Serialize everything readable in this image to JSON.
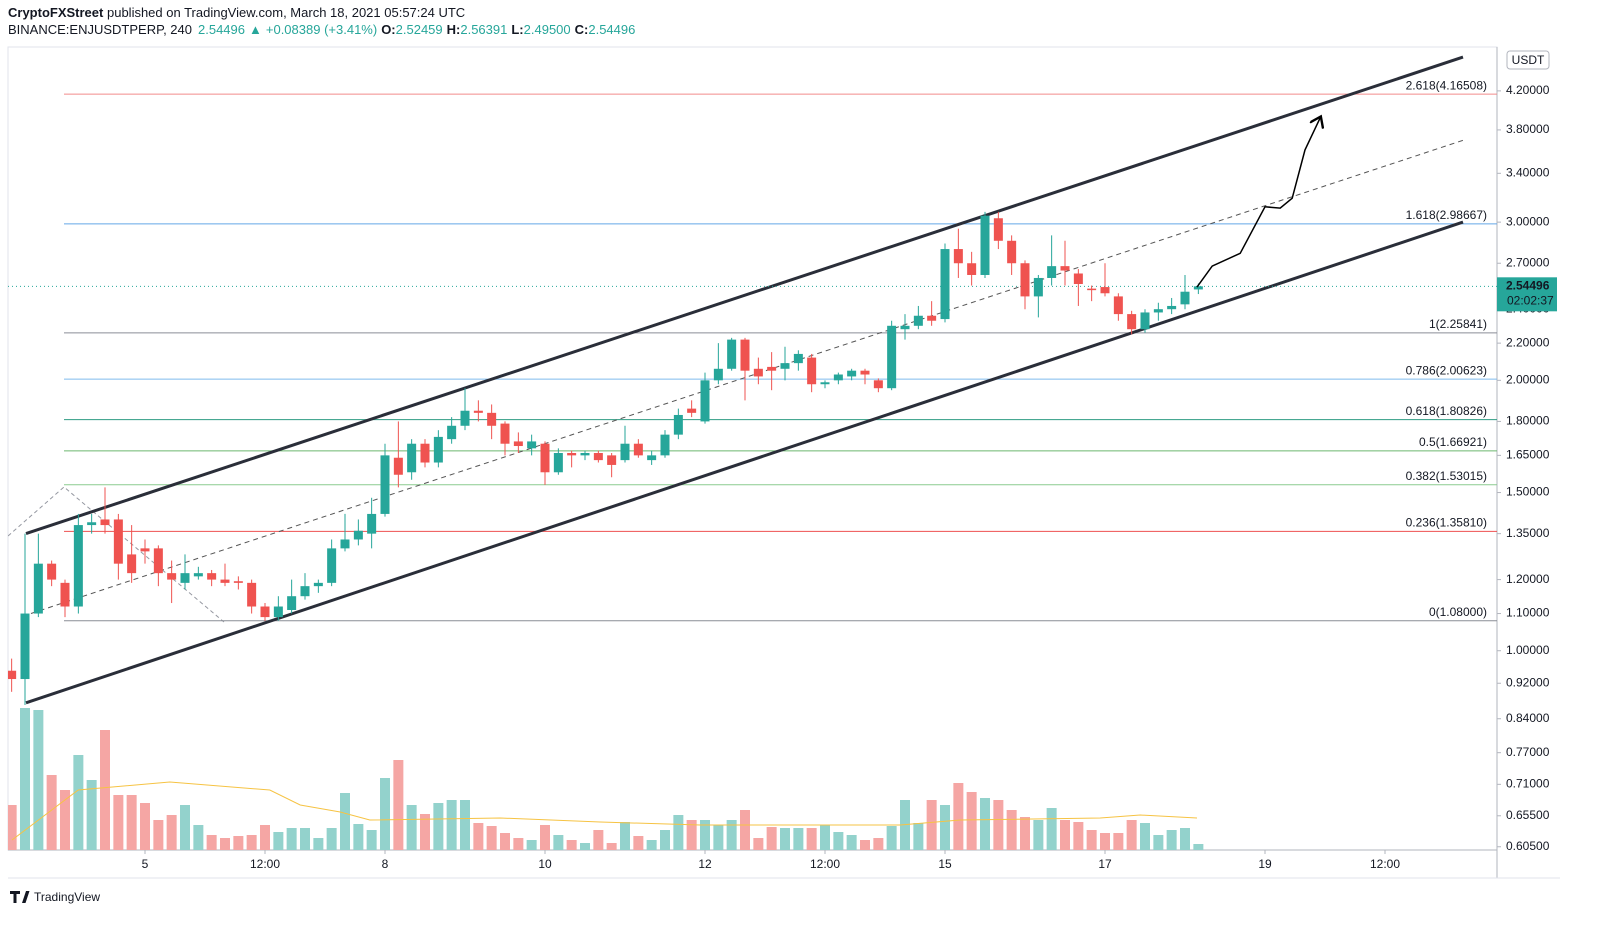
{
  "chart_data": {
    "type": "candlestick",
    "header": {
      "author": "CryptoFXStreet",
      "published": "published on TradingView.com, March 18, 2021 05:57:24 UTC",
      "symbol": "BINANCE:ENJUSDTPERP, 240",
      "last": "2.54496",
      "change": "+0.08389 (+3.41%)",
      "ohlc": [
        {
          "key": "O:",
          "value": "2.52459"
        },
        {
          "key": "H:",
          "value": "2.56391"
        },
        {
          "key": "L:",
          "value": "2.49500"
        },
        {
          "key": "C:",
          "value": "2.54496"
        }
      ]
    },
    "currency": "USDT",
    "countdown": "02:02:37",
    "footer": "TradingView",
    "up_color": "#26a69a",
    "down_color": "#ef5350",
    "volume_up_color": "#93d2cc",
    "volume_down_color": "#f5a6a4",
    "volume_ma_color": "#f6c343",
    "log_scale": true,
    "grid": false,
    "xlim": [
      3.2875,
      21.9
    ],
    "xticks": [
      5,
      {
        "value": 6.5,
        "label": "12:00"
      },
      8,
      10,
      12,
      {
        "value": 13.5,
        "label": "12:00"
      },
      15,
      17,
      19,
      {
        "value": 20.5,
        "label": "12:00"
      }
    ],
    "ylim": [
      0.6,
      4.7
    ],
    "yticks": [
      {
        "value": 4.2,
        "label": "4.20000"
      },
      {
        "value": 3.8,
        "label": "3.80000"
      },
      {
        "value": 3.4,
        "label": "3.40000"
      },
      {
        "value": 3.0,
        "label": "3.00000"
      },
      {
        "value": 2.7,
        "label": "2.70000"
      },
      {
        "value": 2.4,
        "label": "2.40000"
      },
      {
        "value": 2.2,
        "label": "2.20000"
      },
      {
        "value": 2.0,
        "label": "2.00000"
      },
      {
        "value": 1.8,
        "label": "1.80000"
      },
      {
        "value": 1.65,
        "label": "1.65000"
      },
      {
        "value": 1.5,
        "label": "1.50000"
      },
      {
        "value": 1.35,
        "label": "1.35000"
      },
      {
        "value": 1.2,
        "label": "1.20000"
      },
      {
        "value": 1.1,
        "label": "1.10000"
      },
      {
        "value": 1.0,
        "label": "1.00000"
      },
      {
        "value": 0.92,
        "label": "0.92000"
      },
      {
        "value": 0.84,
        "label": "0.84000"
      },
      {
        "value": 0.77,
        "label": "0.77000"
      },
      {
        "value": 0.71,
        "label": "0.71000"
      },
      {
        "value": 0.655,
        "label": "0.65500"
      },
      {
        "value": 0.605,
        "label": "0.60500"
      }
    ],
    "volume_ylim": [
      0,
      150
    ],
    "x": [
      3.333,
      3.5,
      3.667,
      3.833,
      4,
      4.167,
      4.333,
      4.5,
      4.667,
      4.833,
      5,
      5.167,
      5.333,
      5.5,
      5.667,
      5.833,
      6,
      6.167,
      6.333,
      6.5,
      6.667,
      6.833,
      7,
      7.167,
      7.333,
      7.5,
      7.667,
      7.833,
      8,
      8.167,
      8.333,
      8.5,
      8.667,
      8.833,
      9,
      9.167,
      9.333,
      9.5,
      9.667,
      9.833,
      10,
      10.167,
      10.333,
      10.5,
      10.667,
      10.833,
      11,
      11.167,
      11.333,
      11.5,
      11.667,
      11.833,
      12,
      12.167,
      12.333,
      12.5,
      12.667,
      12.833,
      13,
      13.167,
      13.333,
      13.5,
      13.667,
      13.833,
      14,
      14.167,
      14.333,
      14.5,
      14.667,
      14.833,
      15,
      15.167,
      15.333,
      15.5,
      15.667,
      15.833,
      16,
      16.167,
      16.333,
      16.5,
      16.667,
      16.833,
      17,
      17.167,
      17.333,
      17.5,
      17.667,
      17.833,
      18,
      18.167
    ],
    "open": [
      0.95,
      0.93,
      1.1,
      1.25,
      1.19,
      1.12,
      1.38,
      1.4,
      1.4,
      1.28,
      1.3,
      1.3,
      1.22,
      1.19,
      1.21,
      1.22,
      1.2,
      1.195,
      1.19,
      1.12,
      1.09,
      1.11,
      1.15,
      1.18,
      1.19,
      1.3,
      1.33,
      1.35,
      1.42,
      1.64,
      1.58,
      1.7,
      1.62,
      1.72,
      1.78,
      1.85,
      1.84,
      1.79,
      1.71,
      1.68,
      1.7,
      1.58,
      1.66,
      1.65,
      1.66,
      1.65,
      1.63,
      1.7,
      1.63,
      1.65,
      1.74,
      1.86,
      1.8,
      2.0,
      2.06,
      2.22,
      2.06,
      2.07,
      2.06,
      2.09,
      2.12,
      1.98,
      2.0,
      2.02,
      2.05,
      2.0,
      1.96,
      2.28,
      2.3,
      2.36,
      2.34,
      2.8,
      2.7,
      2.62,
      3.03,
      2.86,
      2.7,
      2.48,
      2.6,
      2.68,
      2.63,
      2.53,
      2.54,
      2.48,
      2.37,
      2.28,
      2.38,
      2.4,
      2.43,
      2.52459
    ],
    "high": [
      0.98,
      1.35,
      1.35,
      1.26,
      1.2,
      1.42,
      1.42,
      1.52,
      1.42,
      1.38,
      1.33,
      1.31,
      1.26,
      1.28,
      1.24,
      1.23,
      1.25,
      1.21,
      1.2,
      1.13,
      1.15,
      1.2,
      1.22,
      1.2,
      1.33,
      1.42,
      1.4,
      1.48,
      1.7,
      1.8,
      1.72,
      1.72,
      1.76,
      1.82,
      1.96,
      1.9,
      1.88,
      1.8,
      1.75,
      1.74,
      1.71,
      1.68,
      1.67,
      1.67,
      1.67,
      1.66,
      1.78,
      1.72,
      1.67,
      1.76,
      1.86,
      1.9,
      2.04,
      2.2,
      2.23,
      2.23,
      2.12,
      2.15,
      2.18,
      2.16,
      2.14,
      2.0,
      2.04,
      2.06,
      2.06,
      2.01,
      2.33,
      2.37,
      2.42,
      2.45,
      2.84,
      2.95,
      2.78,
      3.08,
      3.08,
      2.9,
      2.72,
      2.62,
      2.9,
      2.86,
      2.66,
      2.55,
      2.7,
      2.5,
      2.39,
      2.4,
      2.44,
      2.47,
      2.62,
      2.56391
    ],
    "low": [
      0.9,
      0.87,
      1.09,
      1.18,
      1.09,
      1.1,
      1.35,
      1.35,
      1.2,
      1.19,
      1.25,
      1.18,
      1.13,
      1.17,
      1.2,
      1.18,
      1.18,
      1.17,
      1.1,
      1.08,
      1.08,
      1.1,
      1.14,
      1.16,
      1.18,
      1.29,
      1.31,
      1.3,
      1.41,
      1.52,
      1.55,
      1.6,
      1.6,
      1.7,
      1.76,
      1.8,
      1.72,
      1.65,
      1.66,
      1.65,
      1.53,
      1.57,
      1.6,
      1.63,
      1.62,
      1.56,
      1.62,
      1.64,
      1.61,
      1.64,
      1.72,
      1.82,
      1.79,
      1.98,
      2.05,
      1.9,
      1.98,
      1.95,
      2.0,
      2.05,
      1.94,
      1.96,
      1.98,
      2.0,
      1.98,
      1.94,
      1.95,
      2.22,
      2.28,
      2.3,
      2.32,
      2.6,
      2.55,
      2.6,
      2.8,
      2.62,
      2.4,
      2.35,
      2.55,
      2.55,
      2.42,
      2.45,
      2.48,
      2.33,
      2.25,
      2.26,
      2.33,
      2.37,
      2.4,
      2.495
    ],
    "close": [
      0.93,
      1.1,
      1.25,
      1.2,
      1.12,
      1.38,
      1.39,
      1.38,
      1.25,
      1.22,
      1.29,
      1.22,
      1.2,
      1.22,
      1.22,
      1.2,
      1.19,
      1.19,
      1.12,
      1.09,
      1.12,
      1.15,
      1.18,
      1.19,
      1.3,
      1.33,
      1.36,
      1.42,
      1.65,
      1.57,
      1.7,
      1.62,
      1.73,
      1.78,
      1.85,
      1.84,
      1.78,
      1.7,
      1.69,
      1.71,
      1.58,
      1.66,
      1.65,
      1.66,
      1.63,
      1.61,
      1.7,
      1.65,
      1.65,
      1.74,
      1.83,
      1.84,
      2.0,
      2.06,
      2.22,
      2.05,
      2.02,
      2.05,
      2.09,
      2.14,
      1.98,
      1.99,
      2.03,
      2.05,
      2.03,
      1.96,
      2.3,
      2.3,
      2.36,
      2.33,
      2.8,
      2.7,
      2.62,
      3.05,
      2.86,
      2.7,
      2.48,
      2.6,
      2.68,
      2.65,
      2.56,
      2.52,
      2.5,
      2.37,
      2.28,
      2.38,
      2.4,
      2.42,
      2.51,
      2.54496
    ],
    "volume": [
      45,
      142,
      140,
      75,
      60,
      95,
      70,
      120,
      55,
      55,
      47,
      30,
      35,
      45,
      25,
      15,
      12,
      14,
      15,
      25,
      18,
      22,
      22,
      12,
      22,
      57,
      26,
      20,
      72,
      90,
      45,
      36,
      47,
      50,
      50,
      27,
      24,
      17,
      12,
      10,
      25,
      15,
      10,
      7,
      20,
      7,
      28,
      14,
      10,
      20,
      35,
      30,
      30,
      25,
      30,
      40,
      12,
      23,
      22,
      22,
      22,
      25,
      18,
      15,
      10,
      12,
      24,
      50,
      27,
      50,
      45,
      67,
      58,
      52,
      50,
      40,
      33,
      30,
      42,
      30,
      28,
      20,
      17,
      17,
      30,
      27,
      15,
      20,
      22,
      6
    ],
    "volume_ma": {
      "x": [
        3.3375,
        4.165,
        5.31,
        6.56,
        6.94,
        7.44,
        7.81,
        9.44,
        10.69,
        11.94,
        14.44,
        15.19,
        16.94,
        17.44,
        18.15
      ],
      "values": [
        10,
        60,
        68,
        60,
        45,
        38,
        30,
        32,
        28,
        25,
        25,
        30,
        32,
        35,
        32
      ]
    },
    "fib_levels": [
      {
        "value": 4.16508,
        "label": "2.618(4.16508)",
        "color": "#f28b8b",
        "text_color": "#e8625f"
      },
      {
        "value": 2.98667,
        "label": "1.618(2.98667)",
        "color": "#64a8e8",
        "text_color": "#2196f3"
      },
      {
        "value": 2.25841,
        "label": "1(2.25841)",
        "color": "#8a8d96",
        "text_color": "#787b86"
      },
      {
        "value": 2.00623,
        "label": "0.786(2.00623)",
        "color": "#7fbbee",
        "text_color": "#64b5f6"
      },
      {
        "value": 1.80826,
        "label": "0.618(1.80826)",
        "color": "#2e9c82",
        "text_color": "#089981"
      },
      {
        "value": 1.66921,
        "label": "0.5(1.66921)",
        "color": "#6cb86f",
        "text_color": "#4caf50"
      },
      {
        "value": 1.53015,
        "label": "0.382(1.53015)",
        "color": "#8ccc8f",
        "text_color": "#66bb6a"
      },
      {
        "value": 1.3581,
        "label": "0.236(1.35810)",
        "color": "#ee5050",
        "text_color": "#f23645"
      },
      {
        "value": 1.08,
        "label": "0(1.08000)",
        "color": "#8a8d96",
        "text_color": "#787b86"
      }
    ],
    "trend_lines": [
      {
        "x": [
          3.5125,
          21.475
        ],
        "values": [
          1.35,
          4.58
        ],
        "style": "solid"
      },
      {
        "x": [
          3.5125,
          21.475
        ],
        "values": [
          0.875,
          3.0
        ],
        "style": "solid"
      },
      {
        "x": [
          3.575,
          21.475
        ],
        "values": [
          1.1,
          3.7
        ],
        "style": "dashed"
      }
    ],
    "projection": {
      "x": [
        18.15,
        18.34,
        18.69,
        19.0,
        19.19,
        19.34,
        19.5,
        19.69
      ],
      "values": [
        2.54,
        2.68,
        2.77,
        3.12,
        3.11,
        3.19,
        3.61,
        3.92
      ]
    }
  }
}
